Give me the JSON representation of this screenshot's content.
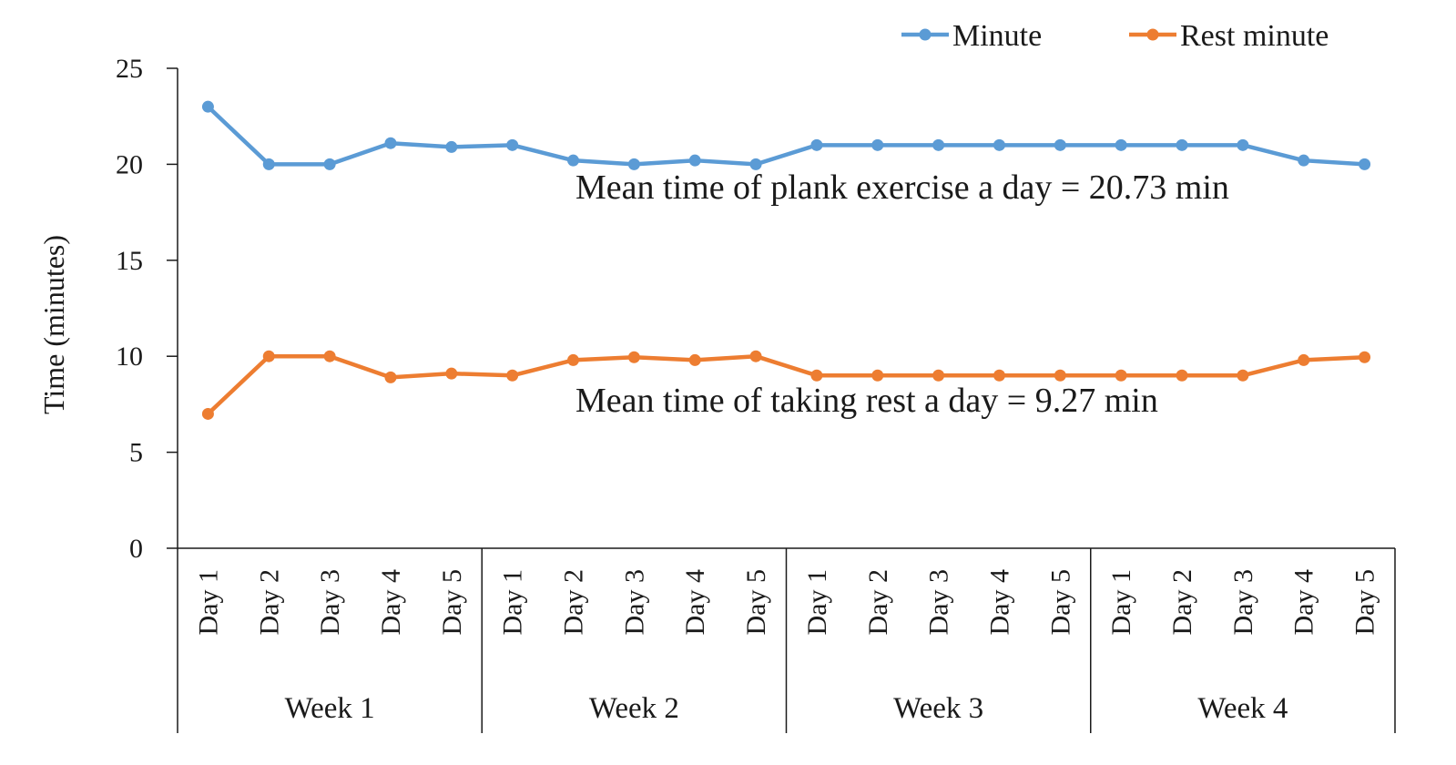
{
  "chart_data": {
    "type": "line",
    "ylabel": "Time (minutes)",
    "ylim": [
      0,
      25
    ],
    "yticks": [
      0,
      5,
      10,
      15,
      20,
      25
    ],
    "grid": false,
    "legend_position": "top-right",
    "groups": [
      {
        "label": "Week 1",
        "days": [
          "Day 1",
          "Day 2",
          "Day 3",
          "Day 4",
          "Day 5"
        ]
      },
      {
        "label": "Week 2",
        "days": [
          "Day 1",
          "Day 2",
          "Day 3",
          "Day 4",
          "Day 5"
        ]
      },
      {
        "label": "Week 3",
        "days": [
          "Day 1",
          "Day 2",
          "Day 3",
          "Day 4",
          "Day 5"
        ]
      },
      {
        "label": "Week 4",
        "days": [
          "Day 1",
          "Day 2",
          "Day 3",
          "Day 4",
          "Day 5"
        ]
      }
    ],
    "series": [
      {
        "name": "Minute",
        "color": "#5b9bd5",
        "values": [
          23,
          20,
          20,
          21.1,
          20.9,
          21,
          20.2,
          20,
          20.2,
          20,
          21,
          21,
          21,
          21,
          21,
          21,
          21,
          21,
          20.2,
          20
        ]
      },
      {
        "name": "Rest minute",
        "color": "#ed7d31",
        "values": [
          7,
          10,
          10,
          8.9,
          9.1,
          9,
          9.8,
          9.95,
          9.8,
          10,
          9,
          9,
          9,
          9,
          9,
          9,
          9,
          9,
          9.8,
          9.95
        ]
      }
    ],
    "annotations": [
      {
        "text": "Mean time of plank exercise a day = 20.73 min",
        "anchor_y": 17.8
      },
      {
        "text": "Mean time of taking rest a day = 9.27 min",
        "anchor_y": 6.7
      }
    ]
  }
}
